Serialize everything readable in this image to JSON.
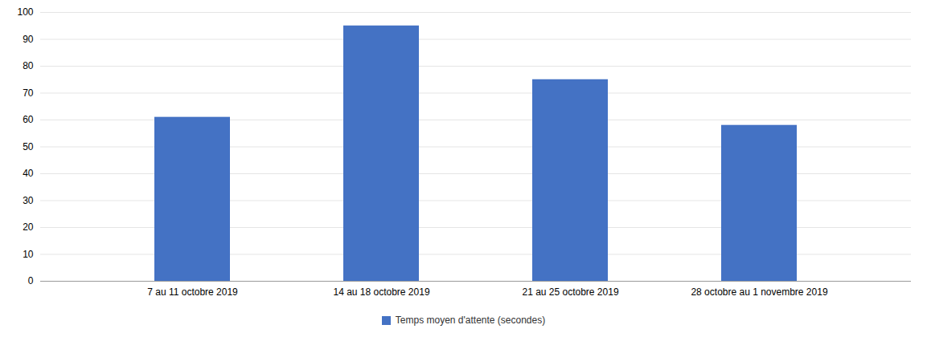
{
  "chart_data": {
    "type": "bar",
    "categories": [
      "7 au 11 octobre 2019",
      "14 au 18 octobre 2019",
      "21 au 25 octobre 2019",
      "28 octobre au 1 novembre 2019"
    ],
    "series": [
      {
        "name": "Temps moyen d'attente (secondes)",
        "color": "#4472C4",
        "values": [
          61,
          95,
          75,
          58
        ]
      }
    ],
    "ylim": [
      0,
      100
    ],
    "yticks": [
      0,
      10,
      20,
      30,
      40,
      50,
      60,
      70,
      80,
      90,
      100
    ],
    "grid": true,
    "legend": "bottom"
  }
}
